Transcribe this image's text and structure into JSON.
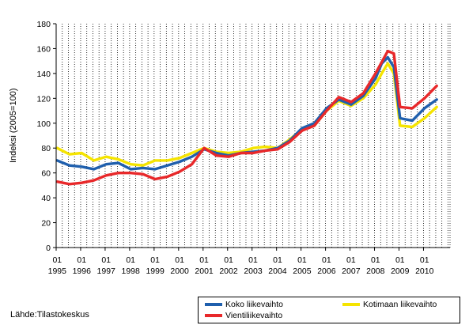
{
  "chart_data": {
    "type": "line",
    "title": "",
    "xlabel": "",
    "ylabel": "Indeksi (2005=100)",
    "ylim": [
      0,
      180
    ],
    "yticks": [
      0,
      20,
      40,
      60,
      80,
      100,
      120,
      140,
      160,
      180
    ],
    "grid": "vertical dotted lines per quarter",
    "x_start": "1995-01",
    "x_frequency": "monthly",
    "xtick_month_label": "01",
    "years": [
      "1995",
      "1996",
      "1997",
      "1998",
      "1999",
      "2000",
      "2001",
      "2002",
      "2003",
      "2004",
      "2005",
      "2006",
      "2007",
      "2008",
      "2009",
      "2010"
    ],
    "legend_position": "bottom-right",
    "series": [
      {
        "name": "Koko liikevaihto",
        "color": "#1f5fad",
        "x": [
          "1995-01",
          "1995-07",
          "1996-01",
          "1996-07",
          "1997-01",
          "1997-07",
          "1998-01",
          "1998-07",
          "1999-01",
          "1999-07",
          "2000-01",
          "2000-07",
          "2001-01",
          "2001-07",
          "2002-01",
          "2002-07",
          "2003-01",
          "2003-07",
          "2004-01",
          "2004-07",
          "2005-01",
          "2005-07",
          "2006-01",
          "2006-07",
          "2007-01",
          "2007-07",
          "2008-01",
          "2008-04",
          "2008-07",
          "2008-10",
          "2009-01",
          "2009-07",
          "2010-01",
          "2010-07"
        ],
        "values": [
          70,
          66,
          65,
          63,
          67,
          68,
          63,
          64,
          63,
          66,
          69,
          73,
          79,
          76,
          74,
          76,
          77,
          78,
          80,
          86,
          96,
          100,
          112,
          119,
          115,
          122,
          136,
          148,
          153,
          145,
          104,
          102,
          112,
          119
        ]
      },
      {
        "name": "Kotimaan liikevaihto",
        "color": "#f5e400",
        "x": [
          "1995-01",
          "1995-07",
          "1996-01",
          "1996-07",
          "1997-01",
          "1997-07",
          "1998-01",
          "1998-07",
          "1999-01",
          "1999-07",
          "2000-01",
          "2000-07",
          "2001-01",
          "2001-07",
          "2002-01",
          "2002-07",
          "2003-01",
          "2003-07",
          "2004-01",
          "2004-07",
          "2005-01",
          "2005-07",
          "2006-01",
          "2006-07",
          "2007-01",
          "2007-07",
          "2008-01",
          "2008-04",
          "2008-07",
          "2008-10",
          "2009-01",
          "2009-07",
          "2010-01",
          "2010-07"
        ],
        "values": [
          80,
          75,
          76,
          70,
          73,
          71,
          67,
          66,
          70,
          70,
          72,
          76,
          80,
          77,
          76,
          77,
          80,
          81,
          80,
          87,
          95,
          98,
          110,
          118,
          114,
          120,
          131,
          140,
          148,
          140,
          98,
          97,
          104,
          113
        ]
      },
      {
        "name": "Vientiliikevaihto",
        "color": "#e8282a",
        "x": [
          "1995-01",
          "1995-07",
          "1996-01",
          "1996-07",
          "1997-01",
          "1997-07",
          "1998-01",
          "1998-07",
          "1999-01",
          "1999-07",
          "2000-01",
          "2000-07",
          "2001-01",
          "2001-07",
          "2002-01",
          "2002-07",
          "2003-01",
          "2003-07",
          "2004-01",
          "2004-07",
          "2005-01",
          "2005-07",
          "2006-01",
          "2006-07",
          "2007-01",
          "2007-07",
          "2008-01",
          "2008-04",
          "2008-07",
          "2008-10",
          "2009-01",
          "2009-07",
          "2010-01",
          "2010-07"
        ],
        "values": [
          53,
          51,
          52,
          54,
          58,
          60,
          60,
          59,
          55,
          57,
          61,
          67,
          80,
          74,
          73,
          76,
          76,
          78,
          79,
          85,
          94,
          98,
          110,
          121,
          117,
          124,
          140,
          149,
          158,
          156,
          113,
          112,
          120,
          130
        ]
      }
    ]
  },
  "source_text": "Lähde:Tilastokeskus"
}
